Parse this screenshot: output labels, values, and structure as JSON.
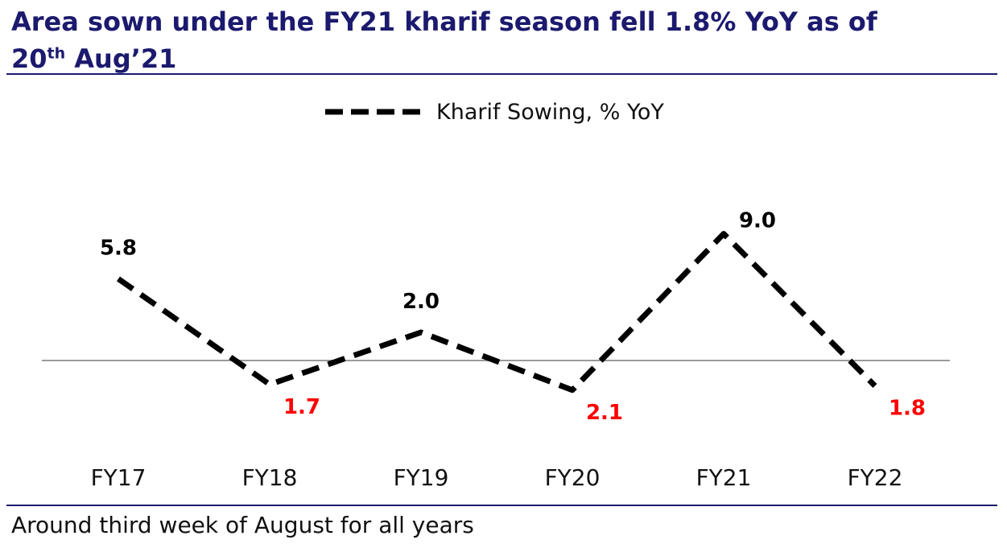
{
  "header": {
    "title_main": "Area sown under the FY21 kharif season fell 1.8% YoY as of",
    "title_day": "20",
    "title_sup": "th",
    "title_rest": " Aug’21"
  },
  "footnote": "Around third week of August for all years",
  "colors": {
    "title": "#1b1a6e",
    "line": "#000000",
    "negative_label": "#ff0000",
    "positive_label": "#000000",
    "zero_line": "#9a9a9a"
  },
  "chart_data": {
    "type": "line",
    "categories": [
      "FY17",
      "FY18",
      "FY19",
      "FY20",
      "FY21",
      "FY22"
    ],
    "series": [
      {
        "name": "Kharif Sowing, % YoY",
        "style": "dashed",
        "values": [
          5.8,
          -1.7,
          2.0,
          -2.1,
          9.0,
          -1.8
        ],
        "labels": [
          "5.8",
          "1.7",
          "2.0",
          "2.1",
          "9.0",
          "1.8"
        ]
      }
    ],
    "zero_line": true,
    "ylim": [
      -5,
      12
    ],
    "legend_position": "top-center",
    "grid": false
  }
}
